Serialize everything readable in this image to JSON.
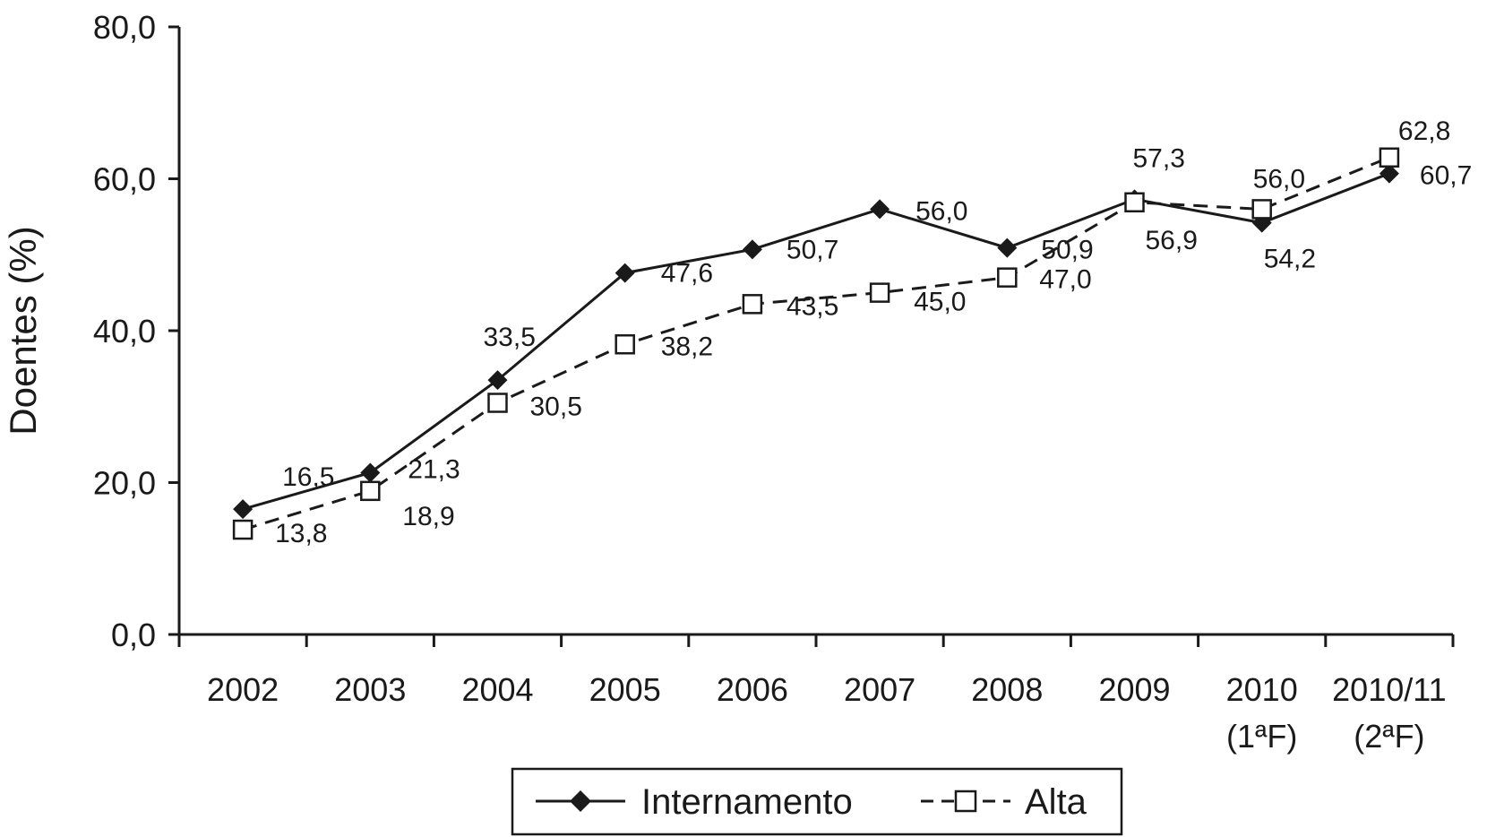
{
  "chart_data": {
    "type": "line",
    "title": "",
    "xlabel": "",
    "ylabel": "Doentes (%)",
    "ylim": [
      0,
      80
    ],
    "yticks": [
      "0,0",
      "20,0",
      "40,0",
      "60,0",
      "80,0"
    ],
    "ytick_values": [
      0,
      20,
      40,
      60,
      80
    ],
    "grid": false,
    "legend_position": "bottom-center",
    "categories": [
      {
        "line1": "2002",
        "line2": ""
      },
      {
        "line1": "2003",
        "line2": ""
      },
      {
        "line1": "2004",
        "line2": ""
      },
      {
        "line1": "2005",
        "line2": ""
      },
      {
        "line1": "2006",
        "line2": ""
      },
      {
        "line1": "2007",
        "line2": ""
      },
      {
        "line1": "2008",
        "line2": ""
      },
      {
        "line1": "2009",
        "line2": ""
      },
      {
        "line1": "2010",
        "line2": "(1ªF)"
      },
      {
        "line1": "2010/11",
        "line2": "(2ªF)"
      }
    ],
    "series": [
      {
        "name": "Internamento",
        "marker": "filled-diamond",
        "line_style": "solid",
        "color": "#1a1a1a",
        "values": [
          16.5,
          21.3,
          33.5,
          47.6,
          50.7,
          56.0,
          50.9,
          57.3,
          54.2,
          60.7
        ],
        "labels": [
          "16,5",
          "21,3",
          "33,5",
          "47,6",
          "50,7",
          "56,0",
          "50,9",
          "57,3",
          "54,2",
          "60,7"
        ]
      },
      {
        "name": "Alta",
        "marker": "open-square",
        "line_style": "dashed",
        "color": "#1a1a1a",
        "values": [
          13.8,
          18.9,
          30.5,
          38.2,
          43.5,
          45.0,
          47.0,
          56.9,
          56.0,
          62.8
        ],
        "labels": [
          "13,8",
          "18,9",
          "30,5",
          "38,2",
          "43,5",
          "45,0",
          "47,0",
          "56,9",
          "56,0",
          "62,8"
        ]
      }
    ]
  }
}
